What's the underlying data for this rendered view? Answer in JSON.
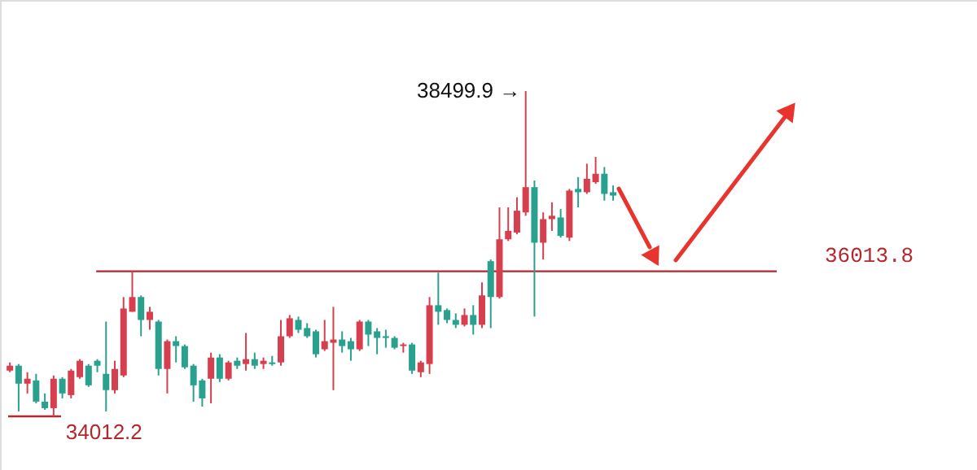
{
  "chart_data": {
    "type": "candlestick",
    "categories": [
      null,
      null,
      null,
      null,
      null,
      null,
      null,
      null,
      null,
      null,
      null,
      null,
      null,
      null,
      null,
      null,
      null,
      null,
      null,
      null,
      null,
      null,
      null,
      null,
      null,
      null,
      null,
      null,
      null,
      null,
      null,
      null,
      null,
      null,
      null,
      null,
      null,
      null,
      null,
      null,
      null,
      null,
      null,
      null,
      null,
      null,
      null,
      null,
      null,
      null,
      null,
      null,
      null,
      null,
      null,
      null,
      null,
      null,
      null,
      null,
      null,
      null,
      null,
      null,
      null,
      null,
      null,
      null,
      null,
      null
    ],
    "ohlc": [
      [
        34643,
        34756,
        34621,
        34711
      ],
      [
        34711,
        34734,
        34080,
        34463
      ],
      [
        34463,
        34621,
        34328,
        34531
      ],
      [
        34508,
        34598,
        34192,
        34215
      ],
      [
        34215,
        34328,
        34102,
        34125
      ],
      [
        34125,
        34576,
        34012.2,
        34531
      ],
      [
        34531,
        34553,
        34260,
        34328
      ],
      [
        34305,
        34666,
        34260,
        34643
      ],
      [
        34553,
        34801,
        34531,
        34779
      ],
      [
        34711,
        34734,
        34418,
        34440
      ],
      [
        34779,
        34801,
        34621,
        34711
      ],
      [
        34598,
        35320,
        34080,
        34373
      ],
      [
        34373,
        34779,
        34328,
        34666
      ],
      [
        34576,
        35658,
        34553,
        35500
      ],
      [
        35455,
        36013.8,
        35455,
        35658
      ],
      [
        35658,
        35681,
        35117,
        35342
      ],
      [
        35342,
        35523,
        35207,
        35455
      ],
      [
        35320,
        35342,
        34576,
        34666
      ],
      [
        34666,
        35072,
        34328,
        35049
      ],
      [
        35049,
        35117,
        34756,
        34982
      ],
      [
        34982,
        35004,
        34666,
        34689
      ],
      [
        34711,
        34734,
        34215,
        34440
      ],
      [
        34508,
        34531,
        34147,
        34260
      ],
      [
        34531,
        34891,
        34192,
        34824
      ],
      [
        34824,
        34869,
        34486,
        34531
      ],
      [
        34531,
        34779,
        34508,
        34756
      ],
      [
        34779,
        34824,
        34666,
        34711
      ],
      [
        34734,
        35162,
        34643,
        34801
      ],
      [
        34801,
        34891,
        34666,
        34711
      ],
      [
        34734,
        34824,
        34666,
        34779
      ],
      [
        34756,
        34846,
        34711,
        34734
      ],
      [
        34756,
        35342,
        34711,
        35117
      ],
      [
        35117,
        35410,
        35094,
        35365
      ],
      [
        35342,
        35388,
        35162,
        35207
      ],
      [
        35230,
        35297,
        35094,
        35117
      ],
      [
        35185,
        35207,
        34824,
        34869
      ],
      [
        34937,
        35342,
        34914,
        35049
      ],
      [
        35027,
        35523,
        34373,
        35072
      ],
      [
        35072,
        35185,
        34891,
        34982
      ],
      [
        35049,
        35094,
        34779,
        34937
      ],
      [
        34937,
        35342,
        34914,
        35320
      ],
      [
        35320,
        35342,
        34982,
        35140
      ],
      [
        35185,
        35230,
        34869,
        35094
      ],
      [
        35117,
        35207,
        34959,
        35094
      ],
      [
        35094,
        35117,
        34937,
        34959
      ],
      [
        34982,
        35027,
        34891,
        35004
      ],
      [
        35004,
        35027,
        34598,
        34643
      ],
      [
        34621,
        34779,
        34553,
        34756
      ],
      [
        34734,
        35658,
        34598,
        35545
      ],
      [
        35545,
        35996,
        35275,
        35455
      ],
      [
        35478,
        35500,
        35297,
        35342
      ],
      [
        35342,
        35433,
        35230,
        35275
      ],
      [
        35275,
        35500,
        35252,
        35410
      ],
      [
        35410,
        35545,
        35140,
        35275
      ],
      [
        35275,
        35861,
        35230,
        35681
      ],
      [
        36153,
        36176,
        35230,
        35658
      ],
      [
        35658,
        36895,
        35636,
        36455
      ],
      [
        36455,
        36895,
        36431,
        36571
      ],
      [
        36548,
        37034,
        36524,
        36849
      ],
      [
        36826,
        38499.9,
        36779,
        37174
      ],
      [
        37174,
        37266,
        35388,
        36408
      ],
      [
        36408,
        36826,
        36176,
        36733
      ],
      [
        36733,
        36965,
        36571,
        36779
      ],
      [
        36756,
        36872,
        36478,
        36501
      ],
      [
        36478,
        37150,
        36431,
        37127
      ],
      [
        37150,
        37313,
        36895,
        37104
      ],
      [
        37104,
        37498,
        37081,
        37290
      ],
      [
        37243,
        37591,
        37220,
        37359
      ],
      [
        37359,
        37452,
        36988,
        37081
      ],
      [
        37104,
        37197,
        36988,
        37058
      ]
    ],
    "colors": [
      "#d6404e",
      "#2aa18f",
      "#d6404e",
      "#2aa18f",
      "#2aa18f",
      "#d6404e",
      "#2aa18f",
      "#d6404e",
      "#d6404e",
      "#2aa18f",
      "#2aa18f",
      "#2aa18f",
      "#d6404e",
      "#d6404e",
      "#d6404e",
      "#2aa18f",
      "#d6404e",
      "#2aa18f",
      "#d6404e",
      "#2aa18f",
      "#2aa18f",
      "#2aa18f",
      "#2aa18f",
      "#d6404e",
      "#2aa18f",
      "#d6404e",
      "#2aa18f",
      "#d6404e",
      "#2aa18f",
      "#d6404e",
      "#2aa18f",
      "#d6404e",
      "#d6404e",
      "#2aa18f",
      "#2aa18f",
      "#2aa18f",
      "#d6404e",
      "#d6404e",
      "#2aa18f",
      "#2aa18f",
      "#d6404e",
      "#2aa18f",
      "#2aa18f",
      "#2aa18f",
      "#2aa18f",
      "#d6404e",
      "#2aa18f",
      "#d6404e",
      "#d6404e",
      "#2aa18f",
      "#2aa18f",
      "#2aa18f",
      "#d6404e",
      "#2aa18f",
      "#d6404e",
      "#2aa18f",
      "#d6404e",
      "#d6404e",
      "#d6404e",
      "#d6404e",
      "#2aa18f",
      "#d6404e",
      "#d6404e",
      "#2aa18f",
      "#d6404e",
      "#2aa18f",
      "#d6404e",
      "#d6404e",
      "#2aa18f",
      "#2aa18f"
    ],
    "ref_lines": [
      {
        "axis": "y",
        "value": 36013.8,
        "label": "36013.8",
        "color": "#b5272d"
      },
      {
        "axis": "y",
        "value": 34012.2,
        "label": "34012.2",
        "color": "#b5272d"
      }
    ],
    "annotations": [
      "38499.9 →"
    ]
  }
}
